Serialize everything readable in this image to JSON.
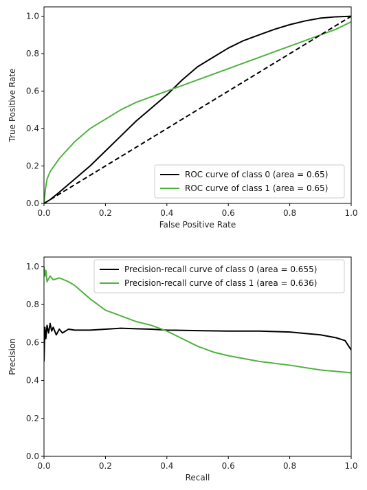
{
  "chart_data": [
    {
      "type": "line",
      "xlabel": "False Positive Rate",
      "ylabel": "True Positive Rate",
      "xlim": [
        0,
        1
      ],
      "ylim": [
        0,
        1.05
      ],
      "xticks": [
        "0.0",
        "0.2",
        "0.4",
        "0.6",
        "0.8",
        "1.0"
      ],
      "yticks": [
        "0.0",
        "0.2",
        "0.4",
        "0.6",
        "0.8",
        "1.0"
      ],
      "legend_position": "lower-right",
      "grid": false,
      "series": [
        {
          "name": "ROC curve of class 0 (area = 0.65)",
          "color": "#000000",
          "style": "solid",
          "x": [
            0,
            0.02,
            0.05,
            0.1,
            0.15,
            0.2,
            0.25,
            0.3,
            0.35,
            0.4,
            0.45,
            0.5,
            0.55,
            0.6,
            0.65,
            0.7,
            0.75,
            0.8,
            0.85,
            0.9,
            0.95,
            1.0
          ],
          "y": [
            0,
            0.02,
            0.06,
            0.13,
            0.2,
            0.28,
            0.36,
            0.44,
            0.51,
            0.58,
            0.66,
            0.73,
            0.78,
            0.83,
            0.87,
            0.9,
            0.93,
            0.955,
            0.975,
            0.99,
            0.997,
            1.0
          ]
        },
        {
          "name": "ROC curve of class 1 (area = 0.65)",
          "color": "#4db33d",
          "style": "solid",
          "x": [
            0,
            0.005,
            0.01,
            0.02,
            0.05,
            0.1,
            0.15,
            0.2,
            0.25,
            0.3,
            0.35,
            0.4,
            0.45,
            0.5,
            0.55,
            0.6,
            0.65,
            0.7,
            0.75,
            0.8,
            0.85,
            0.9,
            0.95,
            1.0
          ],
          "y": [
            0,
            0.08,
            0.13,
            0.17,
            0.24,
            0.33,
            0.4,
            0.45,
            0.5,
            0.54,
            0.57,
            0.6,
            0.63,
            0.66,
            0.69,
            0.72,
            0.75,
            0.78,
            0.81,
            0.84,
            0.87,
            0.9,
            0.93,
            0.97
          ]
        },
        {
          "name": "",
          "color": "#000000",
          "style": "dashed",
          "x": [
            0,
            1
          ],
          "y": [
            0,
            1
          ]
        }
      ]
    },
    {
      "type": "line",
      "xlabel": "Recall",
      "ylabel": "Precision",
      "xlim": [
        0,
        1
      ],
      "ylim": [
        0,
        1.05
      ],
      "xticks": [
        "0.0",
        "0.2",
        "0.4",
        "0.6",
        "0.8",
        "1.0"
      ],
      "yticks": [
        "0.0",
        "0.2",
        "0.4",
        "0.6",
        "0.8",
        "1.0"
      ],
      "legend_position": "upper-right",
      "grid": false,
      "series": [
        {
          "name": "Precision-recall curve of class 0 (area = 0.655)",
          "color": "#000000",
          "style": "solid",
          "x": [
            0,
            0.003,
            0.006,
            0.01,
            0.015,
            0.02,
            0.025,
            0.03,
            0.04,
            0.05,
            0.06,
            0.08,
            0.1,
            0.15,
            0.2,
            0.25,
            0.3,
            0.35,
            0.4,
            0.5,
            0.6,
            0.7,
            0.8,
            0.9,
            0.95,
            0.98,
            1.0
          ],
          "y": [
            0.5,
            0.68,
            0.62,
            0.69,
            0.65,
            0.7,
            0.66,
            0.68,
            0.64,
            0.67,
            0.65,
            0.67,
            0.665,
            0.665,
            0.67,
            0.675,
            0.672,
            0.67,
            0.665,
            0.662,
            0.66,
            0.66,
            0.655,
            0.64,
            0.625,
            0.61,
            0.56
          ]
        },
        {
          "name": "Precision-recall curve of class 1 (area = 0.636)",
          "color": "#4db33d",
          "style": "solid",
          "x": [
            0,
            0.003,
            0.006,
            0.01,
            0.02,
            0.03,
            0.05,
            0.08,
            0.1,
            0.15,
            0.2,
            0.25,
            0.3,
            0.35,
            0.4,
            0.45,
            0.5,
            0.55,
            0.6,
            0.7,
            0.8,
            0.9,
            1.0
          ],
          "y": [
            1.0,
            0.95,
            0.98,
            0.92,
            0.95,
            0.93,
            0.94,
            0.92,
            0.9,
            0.83,
            0.77,
            0.74,
            0.71,
            0.69,
            0.66,
            0.62,
            0.58,
            0.55,
            0.53,
            0.5,
            0.48,
            0.455,
            0.44
          ]
        }
      ]
    }
  ]
}
